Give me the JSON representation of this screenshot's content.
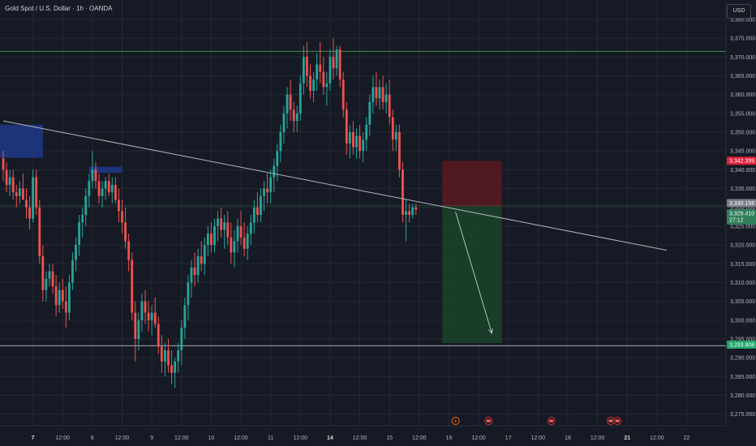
{
  "header": {
    "title": "Gold Spot / U.S. Dollar · 1h · OANDA",
    "currency": "USD"
  },
  "colors": {
    "background": "#161a25",
    "up": "#26a69a",
    "down": "#ef5350",
    "grid": "#242833",
    "trendline": "#b2b5be",
    "level_green": "#4caf50",
    "level_white": "#d1d4dc",
    "zone_blue": "#1e3a8a",
    "stop_zone": "#5b1a22",
    "target_zone": "#1a4429",
    "stop_label": "#e0203a",
    "target_label": "#1ea56b",
    "current_label": "#2e7d5b",
    "gray_label": "#7a7e88"
  },
  "chart_data": {
    "type": "candlestick",
    "symbol": "Gold Spot / U.S. Dollar",
    "interval": "1h",
    "source": "OANDA",
    "ylim": [
      3273,
      3383
    ],
    "y_ticks": [
      3380,
      3375,
      3370,
      3365,
      3360,
      3355,
      3350,
      3345,
      3340,
      3335,
      3330,
      3325,
      3320,
      3315,
      3310,
      3305,
      3300,
      3295,
      3290,
      3285,
      3280,
      3275
    ],
    "x_ticks": [
      {
        "label": "7",
        "bar": 9,
        "bold": true
      },
      {
        "label": "12:00",
        "bar": 18
      },
      {
        "label": "8",
        "bar": 27
      },
      {
        "label": "12:00",
        "bar": 36
      },
      {
        "label": "9",
        "bar": 45
      },
      {
        "label": "12:00",
        "bar": 54
      },
      {
        "label": "10",
        "bar": 63
      },
      {
        "label": "12:00",
        "bar": 72
      },
      {
        "label": "11",
        "bar": 81
      },
      {
        "label": "12:00",
        "bar": 90
      },
      {
        "label": "14",
        "bar": 99,
        "bold": true
      },
      {
        "label": "12:00",
        "bar": 108
      },
      {
        "label": "15",
        "bar": 117
      },
      {
        "label": "12:00",
        "bar": 126
      },
      {
        "label": "16",
        "bar": 135
      },
      {
        "label": "12:00",
        "bar": 144
      },
      {
        "label": "17",
        "bar": 153
      },
      {
        "label": "12:00",
        "bar": 162
      },
      {
        "label": "18",
        "bar": 171
      },
      {
        "label": "12:00",
        "bar": 180
      },
      {
        "label": "21",
        "bar": 189,
        "bold": true
      },
      {
        "label": "12:00",
        "bar": 198
      },
      {
        "label": "22",
        "bar": 207
      }
    ],
    "price_labels": {
      "stop": "3,342.399",
      "current": "3,330.158",
      "last": "3,329.410",
      "countdown": "27:12",
      "target": "3,293.908"
    },
    "levels": [
      {
        "name": "resistance",
        "price": 3371.5
      },
      {
        "name": "mid",
        "price": 3330.4
      },
      {
        "name": "support",
        "price": 3293.2
      }
    ],
    "trendline": [
      {
        "bar": 0,
        "price": 3353
      },
      {
        "bar": 201,
        "price": 3318.6
      }
    ],
    "supply_zones": [
      {
        "bar_start": 0,
        "bar_end": 12,
        "top": 3352,
        "bottom": 3343.2
      },
      {
        "bar_start": 27,
        "bar_end": 36,
        "top": 3340.8,
        "bottom": 3339.2
      }
    ],
    "short_position": {
      "bar_start": 133,
      "bar_end": 151,
      "entry": 3330.2,
      "stop": 3342.4,
      "target": 3293.9
    },
    "projection": [
      {
        "bar": 137,
        "price": 3328.8
      },
      {
        "bar": 148,
        "price": 3296.5
      }
    ],
    "series": [
      {
        "open": 3343,
        "high": 3345,
        "low": 3337,
        "close": 3340
      },
      {
        "open": 3340,
        "high": 3342,
        "low": 3334,
        "close": 3336
      },
      {
        "open": 3336,
        "high": 3340,
        "low": 3333,
        "close": 3338
      },
      {
        "open": 3338,
        "high": 3340,
        "low": 3332,
        "close": 3334
      },
      {
        "open": 3334,
        "high": 3336,
        "low": 3330,
        "close": 3333
      },
      {
        "open": 3333,
        "high": 3337,
        "low": 3331,
        "close": 3335
      },
      {
        "open": 3335,
        "high": 3339,
        "low": 3332,
        "close": 3332
      },
      {
        "open": 3332,
        "high": 3335,
        "low": 3327,
        "close": 3330
      },
      {
        "open": 3330,
        "high": 3333,
        "low": 3324,
        "close": 3327
      },
      {
        "open": 3327,
        "high": 3340,
        "low": 3326,
        "close": 3338
      },
      {
        "open": 3338,
        "high": 3340,
        "low": 3328,
        "close": 3330
      },
      {
        "open": 3330,
        "high": 3332,
        "low": 3315,
        "close": 3317
      },
      {
        "open": 3317,
        "high": 3320,
        "low": 3305,
        "close": 3308
      },
      {
        "open": 3308,
        "high": 3313,
        "low": 3305,
        "close": 3311
      },
      {
        "open": 3311,
        "high": 3315,
        "low": 3309,
        "close": 3313
      },
      {
        "open": 3313,
        "high": 3315,
        "low": 3307,
        "close": 3309
      },
      {
        "open": 3309,
        "high": 3312,
        "low": 3301,
        "close": 3304
      },
      {
        "open": 3304,
        "high": 3310,
        "low": 3302,
        "close": 3308
      },
      {
        "open": 3308,
        "high": 3311,
        "low": 3303,
        "close": 3305
      },
      {
        "open": 3305,
        "high": 3309,
        "low": 3298,
        "close": 3302
      },
      {
        "open": 3302,
        "high": 3312,
        "low": 3300,
        "close": 3310
      },
      {
        "open": 3310,
        "high": 3318,
        "low": 3308,
        "close": 3316
      },
      {
        "open": 3316,
        "high": 3322,
        "low": 3313,
        "close": 3320
      },
      {
        "open": 3320,
        "high": 3328,
        "low": 3317,
        "close": 3326
      },
      {
        "open": 3326,
        "high": 3330,
        "low": 3322,
        "close": 3328
      },
      {
        "open": 3328,
        "high": 3335,
        "low": 3325,
        "close": 3333
      },
      {
        "open": 3333,
        "high": 3339,
        "low": 3330,
        "close": 3337
      },
      {
        "open": 3337,
        "high": 3345,
        "low": 3335,
        "close": 3340
      },
      {
        "open": 3340,
        "high": 3342,
        "low": 3335,
        "close": 3337
      },
      {
        "open": 3337,
        "high": 3339,
        "low": 3331,
        "close": 3333
      },
      {
        "open": 3333,
        "high": 3337,
        "low": 3330,
        "close": 3335
      },
      {
        "open": 3335,
        "high": 3338,
        "low": 3332,
        "close": 3337
      },
      {
        "open": 3337,
        "high": 3339,
        "low": 3333,
        "close": 3334
      },
      {
        "open": 3334,
        "high": 3338,
        "low": 3331,
        "close": 3336
      },
      {
        "open": 3336,
        "high": 3338,
        "low": 3331,
        "close": 3332
      },
      {
        "open": 3332,
        "high": 3335,
        "low": 3326,
        "close": 3329
      },
      {
        "open": 3329,
        "high": 3332,
        "low": 3323,
        "close": 3326
      },
      {
        "open": 3326,
        "high": 3330,
        "low": 3319,
        "close": 3321
      },
      {
        "open": 3321,
        "high": 3323,
        "low": 3313,
        "close": 3316
      },
      {
        "open": 3316,
        "high": 3318,
        "low": 3300,
        "close": 3302
      },
      {
        "open": 3302,
        "high": 3305,
        "low": 3289,
        "close": 3295
      },
      {
        "open": 3295,
        "high": 3302,
        "low": 3292,
        "close": 3300
      },
      {
        "open": 3300,
        "high": 3307,
        "low": 3297,
        "close": 3305
      },
      {
        "open": 3305,
        "high": 3308,
        "low": 3299,
        "close": 3302
      },
      {
        "open": 3302,
        "high": 3305,
        "low": 3297,
        "close": 3300
      },
      {
        "open": 3300,
        "high": 3304,
        "low": 3296,
        "close": 3302
      },
      {
        "open": 3302,
        "high": 3306,
        "low": 3298,
        "close": 3299
      },
      {
        "open": 3299,
        "high": 3301,
        "low": 3291,
        "close": 3293
      },
      {
        "open": 3293,
        "high": 3296,
        "low": 3286,
        "close": 3289
      },
      {
        "open": 3289,
        "high": 3294,
        "low": 3285,
        "close": 3292
      },
      {
        "open": 3292,
        "high": 3295,
        "low": 3286,
        "close": 3288
      },
      {
        "open": 3288,
        "high": 3292,
        "low": 3283,
        "close": 3286
      },
      {
        "open": 3286,
        "high": 3290,
        "low": 3282,
        "close": 3289
      },
      {
        "open": 3289,
        "high": 3294,
        "low": 3286,
        "close": 3292
      },
      {
        "open": 3292,
        "high": 3300,
        "low": 3288,
        "close": 3298
      },
      {
        "open": 3298,
        "high": 3306,
        "low": 3295,
        "close": 3304
      },
      {
        "open": 3304,
        "high": 3312,
        "low": 3300,
        "close": 3310
      },
      {
        "open": 3310,
        "high": 3316,
        "low": 3306,
        "close": 3314
      },
      {
        "open": 3314,
        "high": 3318,
        "low": 3309,
        "close": 3312
      },
      {
        "open": 3312,
        "high": 3319,
        "low": 3310,
        "close": 3317
      },
      {
        "open": 3317,
        "high": 3321,
        "low": 3313,
        "close": 3315
      },
      {
        "open": 3315,
        "high": 3322,
        "low": 3312,
        "close": 3320
      },
      {
        "open": 3320,
        "high": 3325,
        "low": 3317,
        "close": 3323
      },
      {
        "open": 3323,
        "high": 3326,
        "low": 3318,
        "close": 3320
      },
      {
        "open": 3320,
        "high": 3327,
        "low": 3318,
        "close": 3325
      },
      {
        "open": 3325,
        "high": 3329,
        "low": 3321,
        "close": 3327
      },
      {
        "open": 3327,
        "high": 3330,
        "low": 3322,
        "close": 3324
      },
      {
        "open": 3324,
        "high": 3328,
        "low": 3319,
        "close": 3326
      },
      {
        "open": 3326,
        "high": 3329,
        "low": 3320,
        "close": 3322
      },
      {
        "open": 3322,
        "high": 3326,
        "low": 3315,
        "close": 3318
      },
      {
        "open": 3318,
        "high": 3324,
        "low": 3314,
        "close": 3321
      },
      {
        "open": 3321,
        "high": 3327,
        "low": 3318,
        "close": 3325
      },
      {
        "open": 3325,
        "high": 3329,
        "low": 3320,
        "close": 3322
      },
      {
        "open": 3322,
        "high": 3326,
        "low": 3317,
        "close": 3319
      },
      {
        "open": 3319,
        "high": 3325,
        "low": 3316,
        "close": 3323
      },
      {
        "open": 3323,
        "high": 3328,
        "low": 3320,
        "close": 3326
      },
      {
        "open": 3326,
        "high": 3332,
        "low": 3323,
        "close": 3330
      },
      {
        "open": 3330,
        "high": 3334,
        "low": 3326,
        "close": 3328
      },
      {
        "open": 3328,
        "high": 3335,
        "low": 3326,
        "close": 3333
      },
      {
        "open": 3333,
        "high": 3337,
        "low": 3329,
        "close": 3335
      },
      {
        "open": 3335,
        "high": 3339,
        "low": 3331,
        "close": 3334
      },
      {
        "open": 3334,
        "high": 3340,
        "low": 3331,
        "close": 3338
      },
      {
        "open": 3338,
        "high": 3343,
        "low": 3334,
        "close": 3341
      },
      {
        "open": 3341,
        "high": 3347,
        "low": 3337,
        "close": 3345
      },
      {
        "open": 3345,
        "high": 3352,
        "low": 3342,
        "close": 3350
      },
      {
        "open": 3350,
        "high": 3357,
        "low": 3347,
        "close": 3355
      },
      {
        "open": 3355,
        "high": 3362,
        "low": 3351,
        "close": 3360
      },
      {
        "open": 3360,
        "high": 3364,
        "low": 3353,
        "close": 3356
      },
      {
        "open": 3356,
        "high": 3358,
        "low": 3350,
        "close": 3353
      },
      {
        "open": 3353,
        "high": 3357,
        "low": 3350,
        "close": 3355
      },
      {
        "open": 3355,
        "high": 3365,
        "low": 3353,
        "close": 3363
      },
      {
        "open": 3363,
        "high": 3373,
        "low": 3360,
        "close": 3370
      },
      {
        "open": 3370,
        "high": 3374,
        "low": 3362,
        "close": 3365
      },
      {
        "open": 3365,
        "high": 3368,
        "low": 3359,
        "close": 3361
      },
      {
        "open": 3361,
        "high": 3366,
        "low": 3358,
        "close": 3364
      },
      {
        "open": 3364,
        "high": 3371,
        "low": 3361,
        "close": 3368
      },
      {
        "open": 3368,
        "high": 3374,
        "low": 3363,
        "close": 3366
      },
      {
        "open": 3366,
        "high": 3370,
        "low": 3360,
        "close": 3362
      },
      {
        "open": 3362,
        "high": 3366,
        "low": 3357,
        "close": 3363
      },
      {
        "open": 3363,
        "high": 3372,
        "low": 3361,
        "close": 3370
      },
      {
        "open": 3370,
        "high": 3375,
        "low": 3364,
        "close": 3367
      },
      {
        "open": 3367,
        "high": 3373,
        "low": 3365,
        "close": 3372
      },
      {
        "open": 3372,
        "high": 3373,
        "low": 3362,
        "close": 3364
      },
      {
        "open": 3364,
        "high": 3366,
        "low": 3354,
        "close": 3356
      },
      {
        "open": 3356,
        "high": 3358,
        "low": 3344,
        "close": 3347
      },
      {
        "open": 3347,
        "high": 3352,
        "low": 3343,
        "close": 3350
      },
      {
        "open": 3350,
        "high": 3353,
        "low": 3344,
        "close": 3346
      },
      {
        "open": 3346,
        "high": 3351,
        "low": 3343,
        "close": 3349
      },
      {
        "open": 3349,
        "high": 3352,
        "low": 3343,
        "close": 3345
      },
      {
        "open": 3345,
        "high": 3350,
        "low": 3342,
        "close": 3348
      },
      {
        "open": 3348,
        "high": 3354,
        "low": 3345,
        "close": 3352
      },
      {
        "open": 3352,
        "high": 3360,
        "low": 3349,
        "close": 3358
      },
      {
        "open": 3358,
        "high": 3365,
        "low": 3355,
        "close": 3362
      },
      {
        "open": 3362,
        "high": 3366,
        "low": 3357,
        "close": 3359
      },
      {
        "open": 3359,
        "high": 3364,
        "low": 3356,
        "close": 3362
      },
      {
        "open": 3362,
        "high": 3365,
        "low": 3356,
        "close": 3358
      },
      {
        "open": 3358,
        "high": 3363,
        "low": 3355,
        "close": 3360
      },
      {
        "open": 3360,
        "high": 3364,
        "low": 3352,
        "close": 3354
      },
      {
        "open": 3354,
        "high": 3356,
        "low": 3345,
        "close": 3348
      },
      {
        "open": 3348,
        "high": 3352,
        "low": 3345,
        "close": 3350
      },
      {
        "open": 3350,
        "high": 3352,
        "low": 3338,
        "close": 3340
      },
      {
        "open": 3340,
        "high": 3342,
        "low": 3326,
        "close": 3328
      },
      {
        "open": 3328,
        "high": 3332,
        "low": 3321,
        "close": 3329
      },
      {
        "open": 3329,
        "high": 3331,
        "low": 3326,
        "close": 3328
      },
      {
        "open": 3328,
        "high": 3331,
        "low": 3327,
        "close": 3330
      },
      {
        "open": 3330,
        "high": 3331,
        "low": 3328,
        "close": 3329.4
      }
    ],
    "events": [
      {
        "name": "lightning-icon",
        "bar": 137,
        "color": "#ef6c00"
      },
      {
        "name": "us-flag-icon",
        "bar": 147,
        "color": "#d32f2f"
      },
      {
        "name": "us-flag-icon",
        "bar": 166,
        "color": "#d32f2f"
      },
      {
        "name": "us-flag-icon",
        "bar": 184,
        "color": "#d32f2f"
      },
      {
        "name": "us-flag-icon",
        "bar": 186,
        "color": "#d32f2f"
      }
    ]
  }
}
